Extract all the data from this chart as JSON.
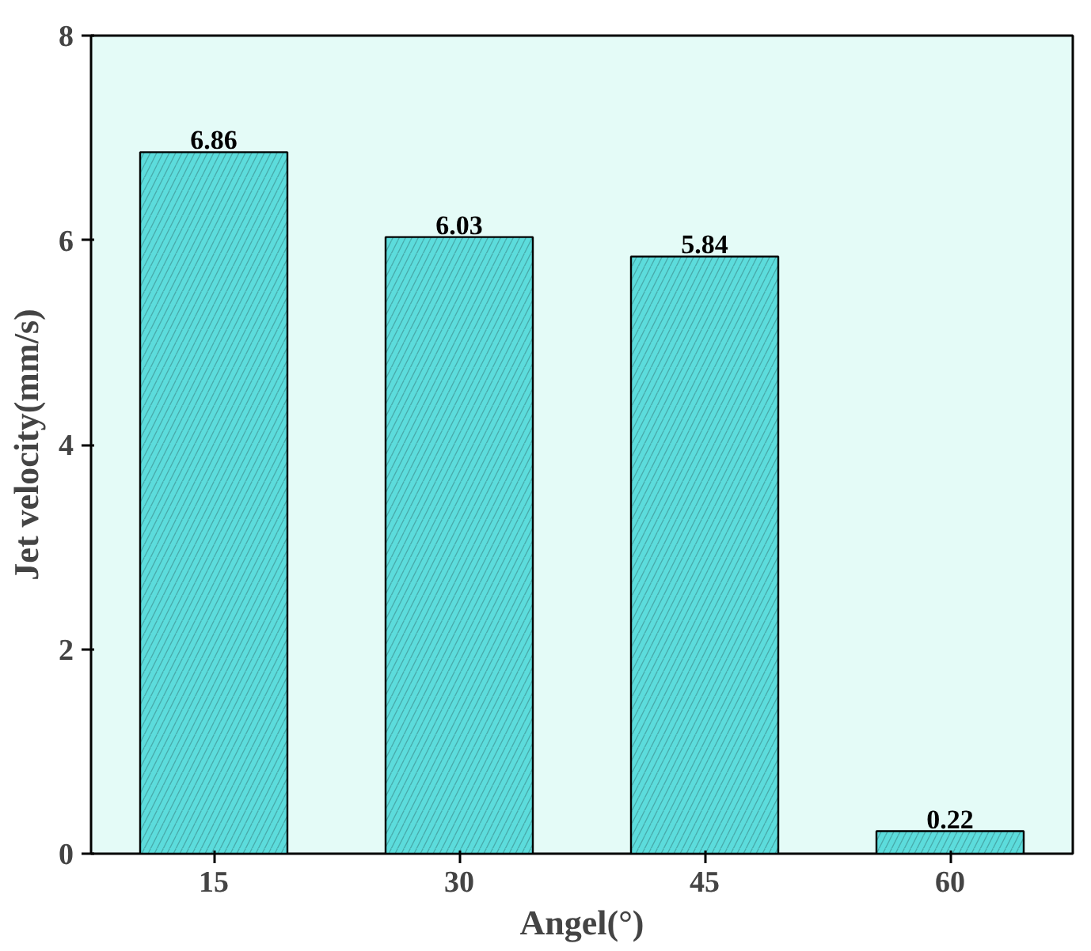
{
  "chart_data": {
    "type": "bar",
    "categories": [
      "15",
      "30",
      "45",
      "60"
    ],
    "values": [
      6.86,
      6.03,
      5.84,
      0.22
    ],
    "color": "#5cdcdc",
    "xlabel": "Angel(°)",
    "ylabel": "Jet velocity(mm/s)",
    "ylim": [
      0,
      8
    ],
    "yticks": [
      0,
      2,
      4,
      6,
      8
    ],
    "data_labels": true
  }
}
